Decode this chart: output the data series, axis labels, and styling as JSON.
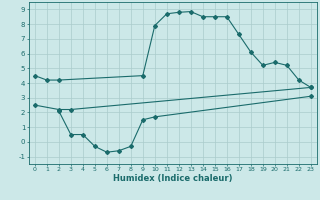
{
  "xlabel": "Humidex (Indice chaleur)",
  "bg_color": "#cce8e8",
  "grid_color": "#aacccc",
  "line_color": "#1a6b6b",
  "xlim": [
    -0.5,
    23.5
  ],
  "ylim": [
    -1.5,
    9.5
  ],
  "yticks": [
    -1,
    0,
    1,
    2,
    3,
    4,
    5,
    6,
    7,
    8,
    9
  ],
  "xticks": [
    0,
    1,
    2,
    3,
    4,
    5,
    6,
    7,
    8,
    9,
    10,
    11,
    12,
    13,
    14,
    15,
    16,
    17,
    18,
    19,
    20,
    21,
    22,
    23
  ],
  "line1_x": [
    0,
    1,
    2,
    9,
    10,
    11,
    12,
    13,
    14,
    15,
    16,
    17,
    18,
    19,
    20,
    21,
    22,
    23
  ],
  "line1_y": [
    4.5,
    4.2,
    4.2,
    4.5,
    7.9,
    8.7,
    8.8,
    8.85,
    8.5,
    8.5,
    8.5,
    7.3,
    6.1,
    5.2,
    5.4,
    5.2,
    4.2,
    3.7
  ],
  "line2_x": [
    0,
    2,
    3,
    23
  ],
  "line2_y": [
    2.5,
    2.2,
    2.2,
    3.7
  ],
  "line3_x": [
    2,
    3,
    4,
    5,
    6,
    7,
    8,
    9,
    10,
    23
  ],
  "line3_y": [
    2.1,
    0.5,
    0.5,
    -0.3,
    -0.7,
    -0.6,
    -0.3,
    1.5,
    1.7,
    3.1
  ],
  "marker": "D",
  "marker_size": 2.0,
  "line_width": 0.8
}
